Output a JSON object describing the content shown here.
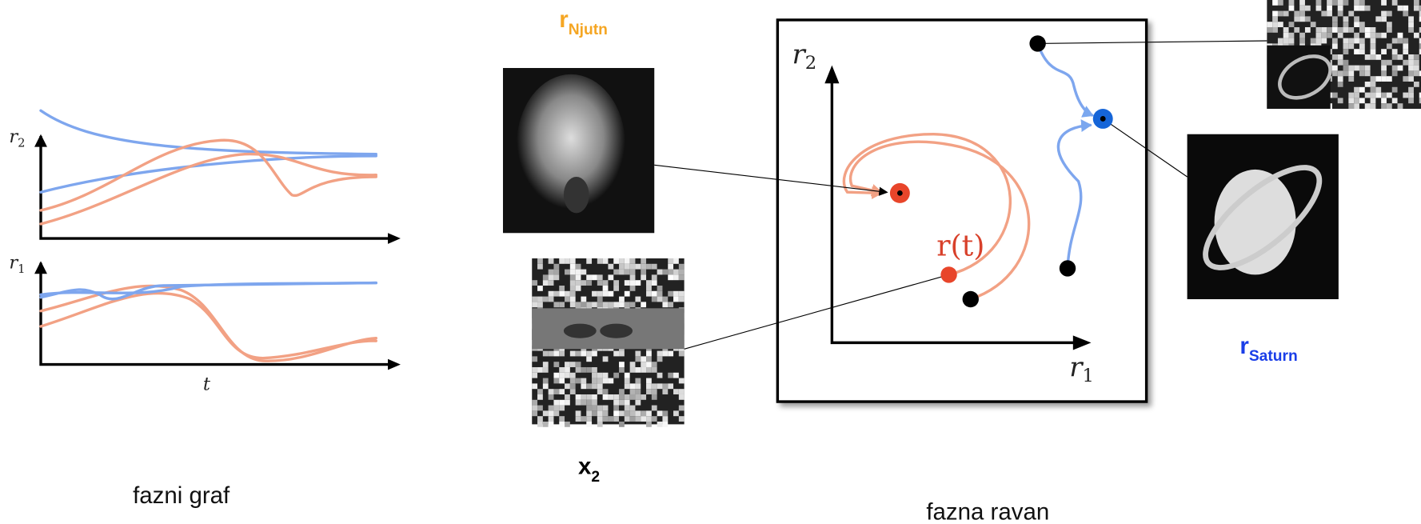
{
  "phase_graph": {
    "caption": "fazni graf",
    "top_axis": {
      "symbol": "r",
      "subscript": "2"
    },
    "bottom_axis": {
      "symbol": "r",
      "subscript": "1"
    },
    "x_axis": "t"
  },
  "images": {
    "newton": {
      "symbol": "r",
      "subscript": "Njutn"
    },
    "noisy": {
      "symbol": "x",
      "subscript": "2"
    },
    "saturn": {
      "symbol": "r",
      "subscript": "Saturn"
    }
  },
  "phase_plane": {
    "caption": "fazna ravan",
    "y_axis": {
      "symbol": "r",
      "subscript": "2"
    },
    "x_axis": {
      "symbol": "r",
      "subscript": "1"
    },
    "trajectory_label": "r(t)"
  }
}
